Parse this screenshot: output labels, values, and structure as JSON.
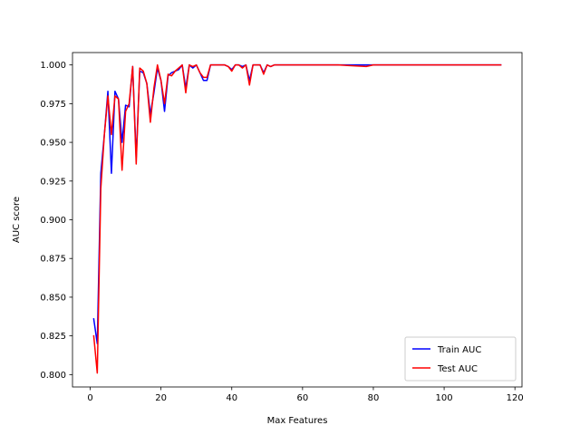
{
  "chart_data": {
    "type": "line",
    "xlabel": "Max Features",
    "ylabel": "AUC score",
    "xlim": [
      -5,
      122
    ],
    "ylim": [
      0.792,
      1.008
    ],
    "xticks": [
      0,
      20,
      40,
      60,
      80,
      100,
      120
    ],
    "xtick_labels": [
      "0",
      "20",
      "40",
      "60",
      "80",
      "100",
      "120"
    ],
    "yticks": [
      0.8,
      0.825,
      0.85,
      0.875,
      0.9,
      0.925,
      0.95,
      0.975,
      1.0
    ],
    "ytick_labels": [
      "0.800",
      "0.825",
      "0.850",
      "0.875",
      "0.900",
      "0.925",
      "0.950",
      "0.975",
      "1.000"
    ],
    "grid": false,
    "legend_position": "lower-right",
    "series": [
      {
        "name": "Train AUC",
        "color": "#0000ff",
        "x": [
          1,
          2,
          3,
          4,
          5,
          6,
          7,
          8,
          9,
          10,
          11,
          12,
          13,
          14,
          15,
          16,
          17,
          18,
          19,
          20,
          21,
          22,
          23,
          24,
          25,
          26,
          27,
          28,
          29,
          30,
          31,
          32,
          33,
          34,
          35,
          36,
          37,
          38,
          39,
          40,
          41,
          42,
          43,
          44,
          45,
          46,
          47,
          48,
          49,
          50,
          51,
          52,
          55,
          60,
          70,
          78,
          80,
          90,
          100,
          110,
          116
        ],
        "y": [
          0.836,
          0.82,
          0.93,
          0.955,
          0.983,
          0.93,
          0.983,
          0.978,
          0.95,
          0.974,
          0.973,
          0.999,
          0.94,
          0.996,
          0.995,
          0.988,
          0.968,
          0.982,
          0.998,
          0.99,
          0.97,
          0.993,
          0.995,
          0.996,
          0.997,
          1.0,
          0.985,
          1.0,
          0.998,
          1.0,
          0.995,
          0.99,
          0.99,
          1.0,
          1.0,
          1.0,
          1.0,
          1.0,
          0.999,
          0.997,
          1.0,
          1.0,
          0.999,
          1.0,
          0.99,
          1.0,
          1.0,
          1.0,
          0.995,
          1.0,
          0.999,
          1.0,
          1.0,
          1.0,
          1.0,
          1.0,
          1.0,
          1.0,
          1.0,
          1.0,
          1.0
        ]
      },
      {
        "name": "Test AUC",
        "color": "#ff0000",
        "x": [
          1,
          2,
          3,
          4,
          5,
          6,
          7,
          8,
          9,
          10,
          11,
          12,
          13,
          14,
          15,
          16,
          17,
          18,
          19,
          20,
          21,
          22,
          23,
          24,
          25,
          26,
          27,
          28,
          29,
          30,
          31,
          32,
          33,
          34,
          35,
          36,
          37,
          38,
          39,
          40,
          41,
          42,
          43,
          44,
          45,
          46,
          47,
          48,
          49,
          50,
          51,
          52,
          55,
          60,
          70,
          78,
          80,
          90,
          100,
          110,
          116
        ],
        "y": [
          0.825,
          0.801,
          0.92,
          0.955,
          0.98,
          0.955,
          0.98,
          0.978,
          0.932,
          0.97,
          0.975,
          0.999,
          0.936,
          0.998,
          0.996,
          0.988,
          0.963,
          0.985,
          1.0,
          0.99,
          0.975,
          0.994,
          0.993,
          0.996,
          0.998,
          1.0,
          0.982,
          1.0,
          0.999,
          1.0,
          0.995,
          0.992,
          0.992,
          1.0,
          1.0,
          1.0,
          1.0,
          1.0,
          0.999,
          0.996,
          1.0,
          1.0,
          0.998,
          1.0,
          0.987,
          1.0,
          1.0,
          1.0,
          0.994,
          1.0,
          0.999,
          1.0,
          1.0,
          1.0,
          1.0,
          0.999,
          1.0,
          1.0,
          1.0,
          1.0,
          1.0
        ]
      }
    ]
  }
}
